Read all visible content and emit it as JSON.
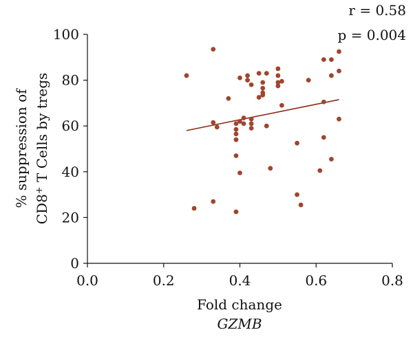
{
  "chart_data": {
    "type": "scatter",
    "title": "",
    "xlabel": "Fold change",
    "xlabel_sub": "GZMB",
    "ylabel_line1": "% suppression of",
    "ylabel_line2_prefix": "CD8",
    "ylabel_line2_sup": "+",
    "ylabel_line2_suffix": " T Cells by tregs",
    "xlim": [
      0.0,
      0.8
    ],
    "ylim": [
      0,
      100
    ],
    "x_ticks": [
      0.0,
      0.2,
      0.4,
      0.6,
      0.8
    ],
    "x_tick_labels": [
      "0.0",
      "0.2",
      "0.4",
      "0.6",
      "0.8"
    ],
    "y_ticks": [
      0,
      20,
      40,
      60,
      80,
      100
    ],
    "y_tick_labels": [
      "0",
      "20",
      "40",
      "60",
      "80",
      "100"
    ],
    "grid": false,
    "annotations": {
      "r": "r = 0.58",
      "p": "p = 0.004"
    },
    "point_color": "#A0452E",
    "line_color": "#8B2A1A",
    "trend_line": {
      "x": [
        0.26,
        0.66
      ],
      "y": [
        58.0,
        71.5
      ]
    },
    "points": [
      {
        "x": 0.26,
        "y": 82
      },
      {
        "x": 0.28,
        "y": 24
      },
      {
        "x": 0.33,
        "y": 93.5
      },
      {
        "x": 0.33,
        "y": 61.5
      },
      {
        "x": 0.33,
        "y": 27
      },
      {
        "x": 0.34,
        "y": 59.5
      },
      {
        "x": 0.37,
        "y": 72
      },
      {
        "x": 0.39,
        "y": 61
      },
      {
        "x": 0.39,
        "y": 58.5
      },
      {
        "x": 0.39,
        "y": 56.5
      },
      {
        "x": 0.39,
        "y": 54
      },
      {
        "x": 0.39,
        "y": 47
      },
      {
        "x": 0.39,
        "y": 22.5
      },
      {
        "x": 0.4,
        "y": 81
      },
      {
        "x": 0.4,
        "y": 62
      },
      {
        "x": 0.4,
        "y": 39.5
      },
      {
        "x": 0.41,
        "y": 63.5
      },
      {
        "x": 0.41,
        "y": 61
      },
      {
        "x": 0.42,
        "y": 82
      },
      {
        "x": 0.42,
        "y": 80
      },
      {
        "x": 0.43,
        "y": 63
      },
      {
        "x": 0.43,
        "y": 61
      },
      {
        "x": 0.43,
        "y": 59
      },
      {
        "x": 0.43,
        "y": 78
      },
      {
        "x": 0.45,
        "y": 83
      },
      {
        "x": 0.45,
        "y": 72.5
      },
      {
        "x": 0.46,
        "y": 79
      },
      {
        "x": 0.46,
        "y": 76.5
      },
      {
        "x": 0.46,
        "y": 74.5
      },
      {
        "x": 0.46,
        "y": 73.5
      },
      {
        "x": 0.47,
        "y": 83
      },
      {
        "x": 0.47,
        "y": 60
      },
      {
        "x": 0.48,
        "y": 41.5
      },
      {
        "x": 0.5,
        "y": 85
      },
      {
        "x": 0.5,
        "y": 82
      },
      {
        "x": 0.5,
        "y": 79
      },
      {
        "x": 0.5,
        "y": 77.5
      },
      {
        "x": 0.51,
        "y": 79.5
      },
      {
        "x": 0.51,
        "y": 69
      },
      {
        "x": 0.55,
        "y": 52.5
      },
      {
        "x": 0.55,
        "y": 30
      },
      {
        "x": 0.56,
        "y": 25.5
      },
      {
        "x": 0.58,
        "y": 80
      },
      {
        "x": 0.61,
        "y": 40.5
      },
      {
        "x": 0.62,
        "y": 89
      },
      {
        "x": 0.62,
        "y": 70.5
      },
      {
        "x": 0.62,
        "y": 55
      },
      {
        "x": 0.64,
        "y": 89
      },
      {
        "x": 0.64,
        "y": 82
      },
      {
        "x": 0.64,
        "y": 45.5
      },
      {
        "x": 0.66,
        "y": 92.5
      },
      {
        "x": 0.66,
        "y": 84
      },
      {
        "x": 0.66,
        "y": 63
      }
    ]
  }
}
